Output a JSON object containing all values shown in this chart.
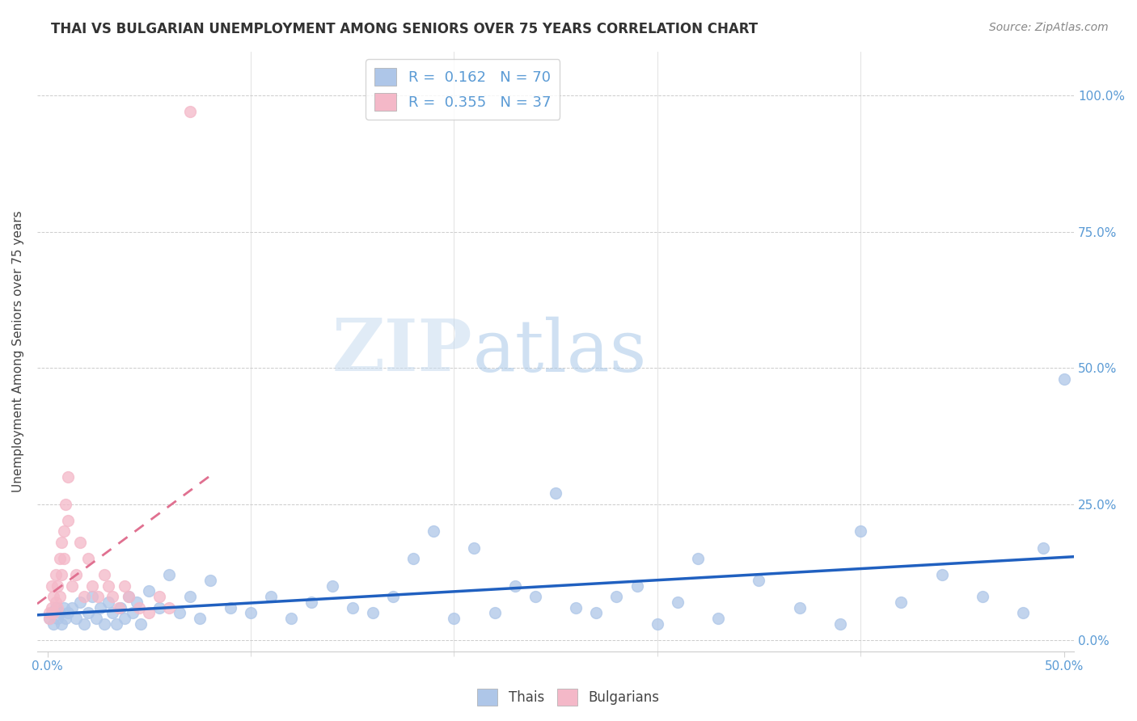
{
  "title": "THAI VS BULGARIAN UNEMPLOYMENT AMONG SENIORS OVER 75 YEARS CORRELATION CHART",
  "source": "Source: ZipAtlas.com",
  "ylabel": "Unemployment Among Seniors over 75 years",
  "xlim": [
    -0.005,
    0.505
  ],
  "ylim": [
    -0.02,
    1.08
  ],
  "xticks_labeled": [
    0.0,
    0.5
  ],
  "xticklabels": [
    "0.0%",
    "50.0%"
  ],
  "xticks_minor": [
    0.1,
    0.2,
    0.3,
    0.4
  ],
  "yticks": [
    0.0,
    0.25,
    0.5,
    0.75,
    1.0
  ],
  "yticklabels_right": [
    "0.0%",
    "25.0%",
    "50.0%",
    "75.0%",
    "100.0%"
  ],
  "tick_color": "#5B9BD5",
  "thai_color": "#AEC6E8",
  "bulgarian_color": "#F4B8C8",
  "thai_line_color": "#2060C0",
  "bulgarian_line_color": "#E07090",
  "thai_R": 0.162,
  "thai_N": 70,
  "bulgarian_R": 0.355,
  "bulgarian_N": 37,
  "legend_labels": [
    "Thais",
    "Bulgarians"
  ],
  "watermark_zip": "ZIP",
  "watermark_atlas": "atlas",
  "thai_x": [
    0.001,
    0.002,
    0.003,
    0.004,
    0.005,
    0.006,
    0.007,
    0.008,
    0.009,
    0.01,
    0.012,
    0.014,
    0.016,
    0.018,
    0.02,
    0.022,
    0.024,
    0.026,
    0.028,
    0.03,
    0.032,
    0.034,
    0.036,
    0.038,
    0.04,
    0.042,
    0.044,
    0.046,
    0.05,
    0.055,
    0.06,
    0.065,
    0.07,
    0.075,
    0.08,
    0.09,
    0.1,
    0.11,
    0.12,
    0.13,
    0.14,
    0.15,
    0.16,
    0.17,
    0.18,
    0.19,
    0.2,
    0.21,
    0.22,
    0.23,
    0.24,
    0.25,
    0.26,
    0.27,
    0.28,
    0.29,
    0.3,
    0.31,
    0.32,
    0.33,
    0.35,
    0.37,
    0.39,
    0.4,
    0.42,
    0.44,
    0.46,
    0.48,
    0.49,
    0.5
  ],
  "thai_y": [
    0.04,
    0.05,
    0.03,
    0.06,
    0.04,
    0.05,
    0.03,
    0.06,
    0.04,
    0.05,
    0.06,
    0.04,
    0.07,
    0.03,
    0.05,
    0.08,
    0.04,
    0.06,
    0.03,
    0.07,
    0.05,
    0.03,
    0.06,
    0.04,
    0.08,
    0.05,
    0.07,
    0.03,
    0.09,
    0.06,
    0.12,
    0.05,
    0.08,
    0.04,
    0.11,
    0.06,
    0.05,
    0.08,
    0.04,
    0.07,
    0.1,
    0.06,
    0.05,
    0.08,
    0.15,
    0.2,
    0.04,
    0.17,
    0.05,
    0.1,
    0.08,
    0.27,
    0.06,
    0.05,
    0.08,
    0.1,
    0.03,
    0.07,
    0.15,
    0.04,
    0.11,
    0.06,
    0.03,
    0.2,
    0.07,
    0.12,
    0.08,
    0.05,
    0.17,
    0.48
  ],
  "bulgarian_x": [
    0.001,
    0.001,
    0.002,
    0.002,
    0.003,
    0.003,
    0.004,
    0.004,
    0.005,
    0.005,
    0.006,
    0.006,
    0.007,
    0.007,
    0.008,
    0.008,
    0.009,
    0.01,
    0.01,
    0.012,
    0.014,
    0.016,
    0.018,
    0.02,
    0.022,
    0.025,
    0.028,
    0.03,
    0.032,
    0.035,
    0.038,
    0.04,
    0.045,
    0.05,
    0.055,
    0.06,
    0.07
  ],
  "bulgarian_y": [
    0.04,
    0.05,
    0.06,
    0.1,
    0.05,
    0.08,
    0.07,
    0.12,
    0.06,
    0.1,
    0.15,
    0.08,
    0.18,
    0.12,
    0.2,
    0.15,
    0.25,
    0.3,
    0.22,
    0.1,
    0.12,
    0.18,
    0.08,
    0.15,
    0.1,
    0.08,
    0.12,
    0.1,
    0.08,
    0.06,
    0.1,
    0.08,
    0.06,
    0.05,
    0.08,
    0.06,
    0.97
  ]
}
